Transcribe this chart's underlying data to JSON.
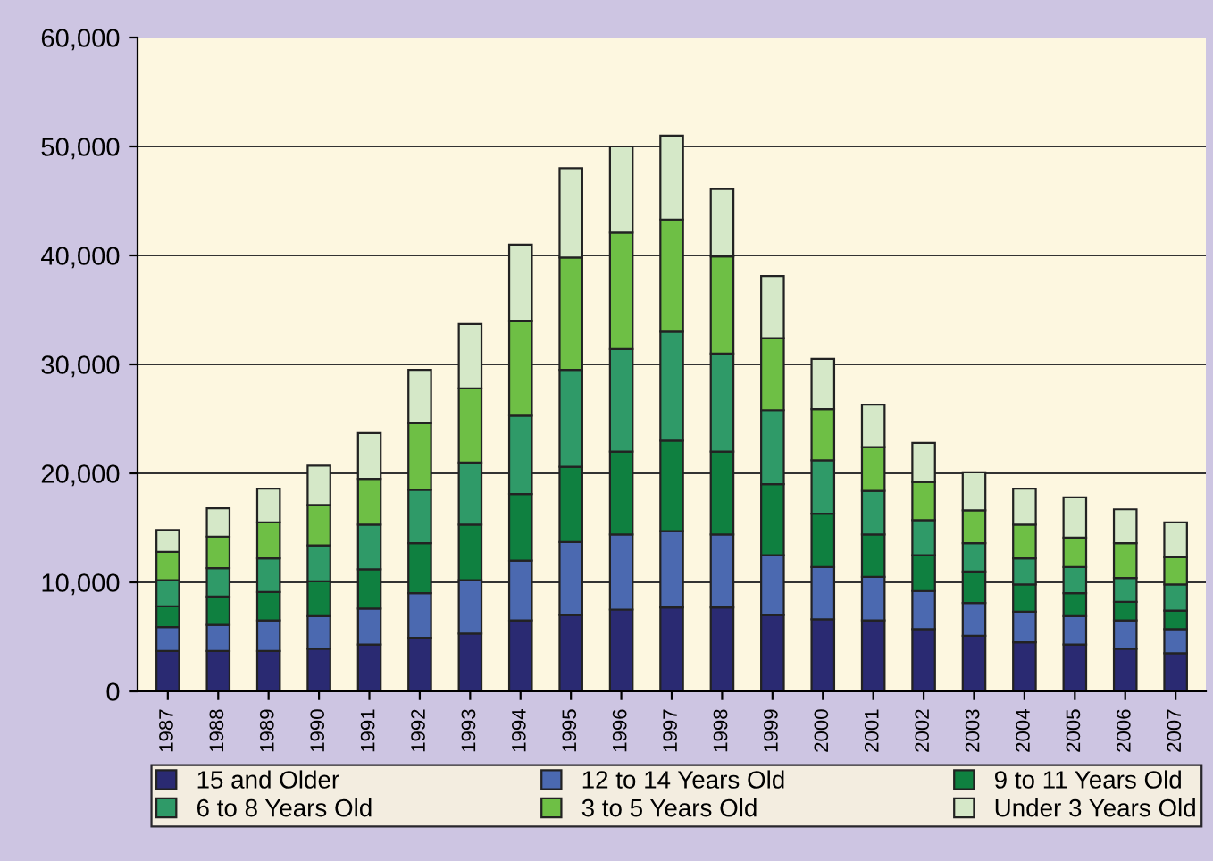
{
  "chart_data": {
    "type": "bar",
    "stacked": true,
    "categories": [
      "1987",
      "1988",
      "1989",
      "1990",
      "1991",
      "1992",
      "1993",
      "1994",
      "1995",
      "1996",
      "1997",
      "1998",
      "1999",
      "2000",
      "2001",
      "2002",
      "2003",
      "2004",
      "2005",
      "2006",
      "2007"
    ],
    "series": [
      {
        "name": "15 and Older",
        "color": "#2a2a72",
        "values": [
          3700,
          3700,
          3700,
          3900,
          4300,
          4900,
          5300,
          6500,
          7000,
          7500,
          7700,
          7700,
          7000,
          6600,
          6500,
          5700,
          5100,
          4500,
          4300,
          3900,
          3500
        ]
      },
      {
        "name": "12 to 14 Years Old",
        "color": "#4b69b0",
        "values": [
          2200,
          2400,
          2800,
          3000,
          3300,
          4100,
          4900,
          5500,
          6700,
          6900,
          7000,
          6700,
          5500,
          4800,
          4000,
          3500,
          3000,
          2800,
          2600,
          2600,
          2200
        ]
      },
      {
        "name": "9 to 11 Years Old",
        "color": "#0f8040",
        "values": [
          1900,
          2600,
          2600,
          3200,
          3600,
          4600,
          5100,
          6100,
          6900,
          7600,
          8300,
          7600,
          6500,
          4900,
          3900,
          3300,
          2900,
          2500,
          2100,
          1700,
          1700
        ]
      },
      {
        "name": "6 to 8 Years Old",
        "color": "#2f9a68",
        "values": [
          2400,
          2600,
          3100,
          3300,
          4100,
          4900,
          5700,
          7200,
          8900,
          9400,
          10000,
          9000,
          6800,
          4900,
          4000,
          3200,
          2600,
          2400,
          2400,
          2200,
          2400
        ]
      },
      {
        "name": "3 to 5 Years Old",
        "color": "#6ebf45",
        "values": [
          2600,
          2900,
          3300,
          3700,
          4200,
          6100,
          6800,
          8700,
          10300,
          10700,
          10300,
          8900,
          6600,
          4700,
          4000,
          3500,
          3000,
          3100,
          2700,
          3200,
          2500
        ]
      },
      {
        "name": "Under 3 Years Old",
        "color": "#d5e8c8",
        "values": [
          2000,
          2600,
          3100,
          3600,
          4200,
          4900,
          5900,
          7000,
          8200,
          7900,
          7700,
          6200,
          5700,
          4600,
          3900,
          3600,
          3500,
          3300,
          3700,
          3100,
          3200
        ]
      }
    ],
    "ylim": [
      0,
      60000
    ],
    "yticks": [
      {
        "value": 0,
        "label": "0"
      },
      {
        "value": 10000,
        "label": "10,000"
      },
      {
        "value": 20000,
        "label": "20,000"
      },
      {
        "value": 30000,
        "label": "30,000"
      },
      {
        "value": 40000,
        "label": "40,000"
      },
      {
        "value": 50000,
        "label": "50,000"
      },
      {
        "value": 60000,
        "label": "60,000"
      }
    ],
    "grid": "y",
    "legend": "bottom"
  }
}
